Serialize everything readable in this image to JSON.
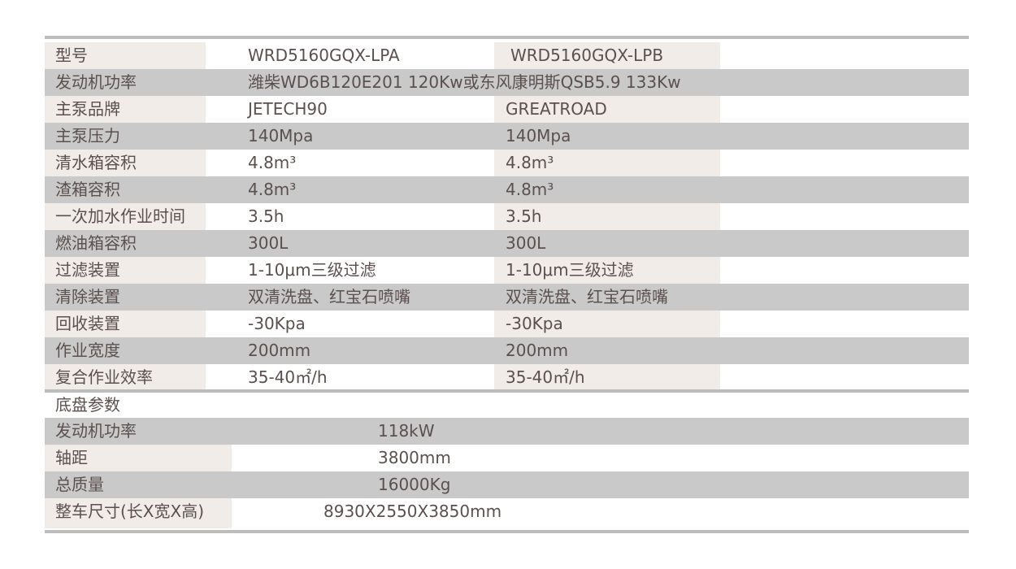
{
  "rows": [
    {
      "label": "型号",
      "a": "WRD5160GQX-LPA",
      "b": "WRD5160GQX-LPB"
    },
    {
      "label": "发动机功率",
      "a": "潍柴WD6B120E201 120Kw或东风康明斯QSB5.9 133Kw",
      "b": ""
    },
    {
      "label": "主泵品牌",
      "a": "JETECH90",
      "b": "GREATROAD"
    },
    {
      "label": "主泵压力",
      "a": "140Mpa",
      "b": "140Mpa"
    },
    {
      "label": "清水箱容积",
      "a": "4.8m³",
      "b": "4.8m³"
    },
    {
      "label": "渣箱容积",
      "a": "4.8m³",
      "b": "4.8m³"
    },
    {
      "label": "一次加水作业时间",
      "a": "3.5h",
      "b": "3.5h"
    },
    {
      "label": "燃油箱容积",
      "a": "300L",
      "b": "300L"
    },
    {
      "label": "过滤装置",
      "a": "1-10μm三级过滤",
      "b": "1-10μm三级过滤"
    },
    {
      "label": "清除装置",
      "a": "双清洗盘、红宝石喷嘴",
      "b": "双清洗盘、红宝石喷嘴"
    },
    {
      "label": "回收装置",
      "a": "-30Kpa",
      "b": "-30Kpa"
    },
    {
      "label": "作业宽度",
      "a": "200mm",
      "b": "200mm"
    },
    {
      "label": "复合作业效率",
      "a": "35-40㎡/h",
      "b": "35-40㎡/h"
    }
  ],
  "chassis": {
    "title": "底盘参数",
    "rows": [
      {
        "label": "发动机功率",
        "value": "118kW"
      },
      {
        "label": "轴距",
        "value": "3800mm"
      },
      {
        "label": "总质量",
        "value": "16000Kg"
      },
      {
        "label": "整车尺寸(长X宽X高)",
        "value": "8930X2550X3850mm"
      }
    ]
  }
}
